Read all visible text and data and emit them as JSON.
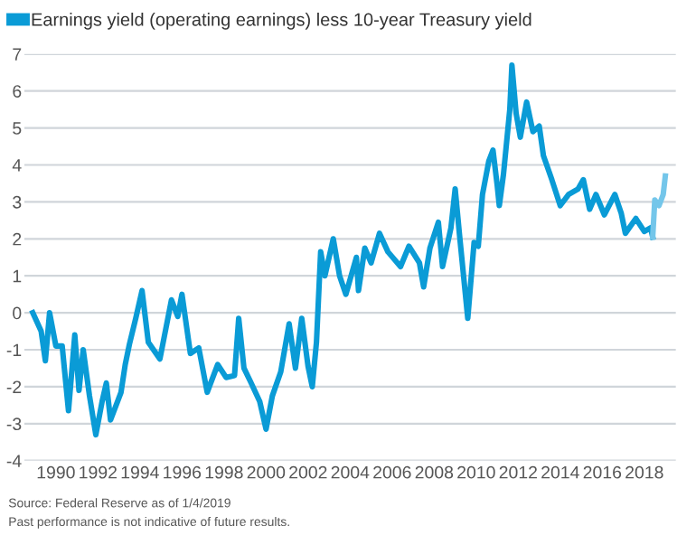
{
  "chart_data": {
    "type": "line",
    "series": [
      {
        "name": "Earnings yield (operating earnings) less 10-year Treasury yield",
        "color": "#0a9bd6",
        "x": [
          1988.9,
          1989.3,
          1989.5,
          1989.7,
          1990.0,
          1990.3,
          1990.6,
          1990.9,
          1991.1,
          1991.3,
          1991.6,
          1991.9,
          1992.2,
          1992.4,
          1992.6,
          1993.1,
          1993.3,
          1993.5,
          1993.8,
          1994.1,
          1994.4,
          1994.95,
          1995.5,
          1995.8,
          1996.0,
          1996.4,
          1996.8,
          1997.2,
          1997.7,
          1998.1,
          1998.5,
          1998.7,
          1998.95,
          1999.25,
          1999.7,
          2000.0,
          2000.3,
          2000.7,
          2001.1,
          2001.4,
          2001.7,
          2002.0,
          2002.2,
          2002.4,
          2002.6,
          2002.8,
          2003.2,
          2003.5,
          2003.8,
          2004.3,
          2004.4,
          2004.7,
          2005.0,
          2005.4,
          2005.8,
          2006.4,
          2006.8,
          2007.3,
          2007.5,
          2007.8,
          2008.2,
          2008.4,
          2008.8,
          2009.0,
          2009.2,
          2009.4,
          2009.6,
          2009.9,
          2010.1,
          2010.3,
          2010.6,
          2010.8,
          2011.0,
          2011.1,
          2011.3,
          2011.6,
          2011.7,
          2011.9,
          2012.1,
          2012.4,
          2012.7,
          2013.0,
          2013.2,
          2013.6,
          2014.0,
          2014.4,
          2014.85,
          2015.1,
          2015.4,
          2015.7,
          2016.1,
          2016.6,
          2016.9,
          2017.1,
          2017.6,
          2018.0,
          2018.3,
          2018.4
        ],
        "values": [
          0.0,
          -0.5,
          -1.3,
          0.0,
          -0.9,
          -0.9,
          -2.65,
          -0.6,
          -2.1,
          -1.0,
          -2.25,
          -3.3,
          -2.4,
          -1.9,
          -2.9,
          -2.15,
          -1.4,
          -0.85,
          -0.15,
          0.6,
          -0.8,
          -1.25,
          0.35,
          -0.1,
          0.5,
          -1.1,
          -0.95,
          -2.15,
          -1.4,
          -1.75,
          -1.7,
          -0.15,
          -1.5,
          -1.85,
          -2.4,
          -3.15,
          -2.25,
          -1.6,
          -0.3,
          -1.5,
          -0.15,
          -1.45,
          -2.0,
          -0.8,
          1.65,
          1.0,
          2.0,
          1.0,
          0.5,
          1.5,
          0.6,
          1.75,
          1.35,
          2.15,
          1.65,
          1.25,
          1.8,
          1.35,
          0.7,
          1.75,
          2.45,
          1.25,
          2.3,
          3.35,
          2.15,
          1.0,
          -0.15,
          1.9,
          1.8,
          3.2,
          4.1,
          4.4,
          3.45,
          2.9,
          3.75,
          5.5,
          6.7,
          5.4,
          4.75,
          5.7,
          4.9,
          5.05,
          4.25,
          3.6,
          2.9,
          3.2,
          3.35,
          3.6,
          2.8,
          3.2,
          2.65,
          3.2,
          2.7,
          2.15,
          2.55,
          2.2,
          2.3,
          2.05
        ]
      },
      {
        "color": "#74c6ea",
        "x": [
          2018.4,
          2018.5,
          2018.7,
          2018.9,
          2019.0
        ],
        "values": [
          2.05,
          3.05,
          2.9,
          3.2,
          3.7
        ]
      }
    ],
    "xlim": [
      1988.5,
      2019.5
    ],
    "xticks": [
      1990,
      1992,
      1994,
      1996,
      1998,
      2000,
      2002,
      2004,
      2006,
      2008,
      2010,
      2012,
      2014,
      2016,
      2018
    ],
    "ylim": [
      -4,
      7
    ],
    "yticks": [
      -4,
      -3,
      -2,
      -1,
      0,
      1,
      2,
      3,
      4,
      5,
      6,
      7
    ],
    "grid": "y",
    "legend": "top left",
    "annotations": [
      "Source: Federal Reserve as of 1/4/2019",
      "Past performance is not indicative of future results."
    ]
  }
}
